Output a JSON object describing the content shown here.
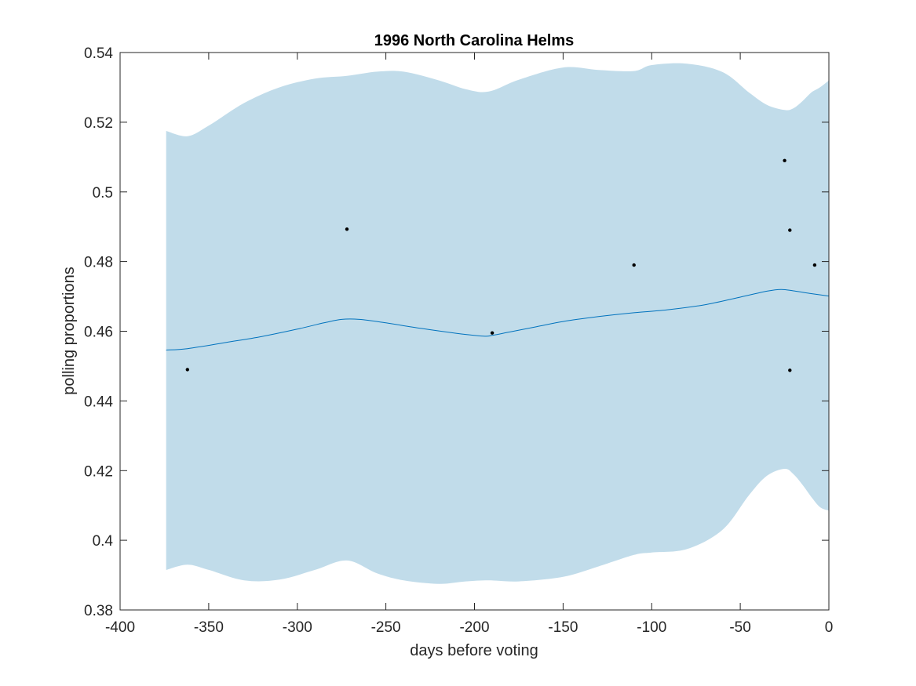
{
  "chart_data": {
    "type": "line",
    "title": "1996 North Carolina Helms",
    "xlabel": "days before voting",
    "ylabel": "polling proportions",
    "xlim": [
      -400,
      0
    ],
    "ylim": [
      0.38,
      0.54
    ],
    "xticks": [
      -400,
      -350,
      -300,
      -250,
      -200,
      -150,
      -100,
      -50,
      0
    ],
    "xtick_labels": [
      "-400",
      "-350",
      "-300",
      "-250",
      "-200",
      "-150",
      "-100",
      "-50",
      "0"
    ],
    "yticks": [
      0.38,
      0.4,
      0.42,
      0.44,
      0.46,
      0.48,
      0.5,
      0.52,
      0.54
    ],
    "ytick_labels": [
      "0.38",
      "0.4",
      "0.42",
      "0.44",
      "0.46",
      "0.48",
      "0.5",
      "0.52",
      "0.54"
    ],
    "grid": false,
    "colors": {
      "band": "#c1dcea",
      "line": "#0072bd",
      "points": "#000000",
      "axes": "#262626"
    },
    "band": {
      "x": [
        -374,
        -362,
        -350,
        -330,
        -310,
        -290,
        -272,
        -255,
        -240,
        -220,
        -205,
        -192,
        -175,
        -150,
        -130,
        -110,
        -100,
        -80,
        -60,
        -45,
        -35,
        -25,
        -20,
        -15,
        -10,
        -5,
        0
      ],
      "upper": [
        0.5175,
        0.516,
        0.519,
        0.5255,
        0.53,
        0.5325,
        0.5333,
        0.5345,
        0.5345,
        0.532,
        0.5295,
        0.5288,
        0.5322,
        0.5357,
        0.535,
        0.5347,
        0.5364,
        0.5368,
        0.5344,
        0.5285,
        0.525,
        0.5235,
        0.524,
        0.526,
        0.5285,
        0.53,
        0.532
      ],
      "lower": [
        0.3915,
        0.393,
        0.3915,
        0.3885,
        0.3887,
        0.3915,
        0.3942,
        0.3905,
        0.3885,
        0.3875,
        0.3882,
        0.3885,
        0.3882,
        0.3895,
        0.3925,
        0.3958,
        0.3965,
        0.3975,
        0.403,
        0.413,
        0.4185,
        0.4205,
        0.419,
        0.416,
        0.4125,
        0.4095,
        0.4085
      ]
    },
    "series": [
      {
        "x": [
          -374,
          -362,
          -340,
          -320,
          -300,
          -285,
          -275,
          -265,
          -250,
          -230,
          -210,
          -195,
          -190,
          -180,
          -165,
          -150,
          -130,
          -110,
          -90,
          -70,
          -50,
          -35,
          -27,
          -20,
          -10,
          0
        ],
        "values": [
          0.4546,
          0.455,
          0.4568,
          0.4585,
          0.4606,
          0.4624,
          0.4634,
          0.4634,
          0.4624,
          0.4608,
          0.4594,
          0.4586,
          0.4588,
          0.4598,
          0.4613,
          0.4628,
          0.4642,
          0.4653,
          0.4662,
          0.4676,
          0.4698,
          0.4715,
          0.472,
          0.4716,
          0.4708,
          0.4701
        ]
      },
      {
        "x": [
          -362,
          -272,
          -190,
          -110,
          -25,
          -22,
          -8,
          -22
        ],
        "values": [
          0.449,
          0.4893,
          0.4595,
          0.479,
          0.509,
          0.489,
          0.479,
          0.4488
        ]
      }
    ]
  }
}
